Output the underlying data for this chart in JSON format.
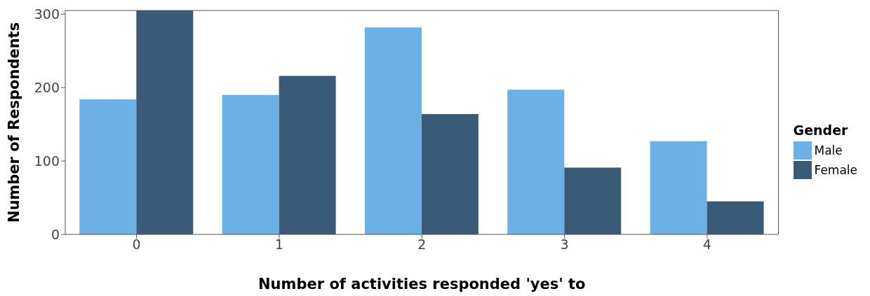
{
  "chart_data": {
    "type": "bar",
    "xlabel": "Number of activities responded 'yes' to",
    "ylabel": "Number of Respondents",
    "legend_title": "Gender",
    "categories": [
      "0",
      "1",
      "2",
      "3",
      "4"
    ],
    "series": [
      {
        "name": "Male",
        "color": "#6cb0e8",
        "values": [
          184,
          190,
          282,
          197,
          127
        ]
      },
      {
        "name": "Female",
        "color": "#3a5b78",
        "values": [
          305,
          216,
          164,
          91,
          45
        ]
      }
    ],
    "ylim": [
      0,
      305
    ],
    "yticks": [
      0,
      100,
      200,
      300
    ],
    "grid": false,
    "legend": "right"
  }
}
